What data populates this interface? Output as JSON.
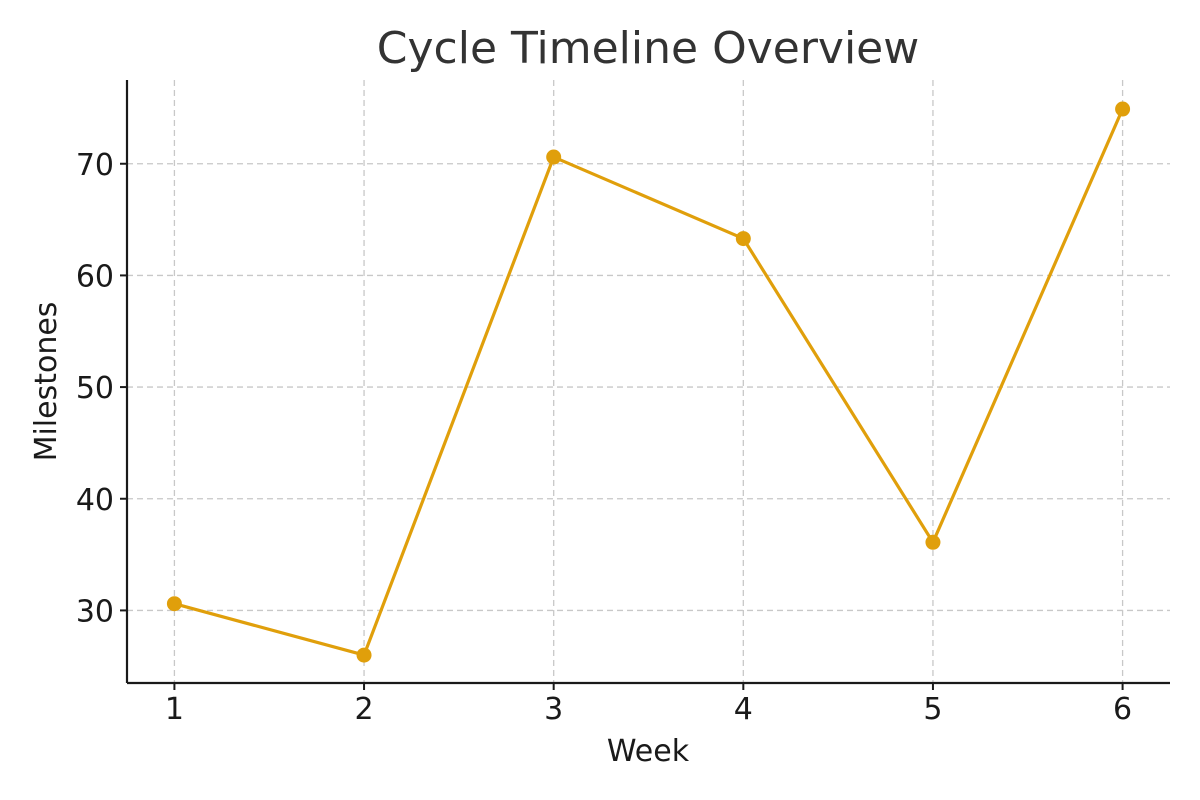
{
  "chart_data": {
    "type": "line",
    "title": "Cycle Timeline Overview",
    "xlabel": "Week",
    "ylabel": "Milestones",
    "x": [
      1,
      2,
      3,
      4,
      5,
      6
    ],
    "series": [
      {
        "values": [
          30.6,
          26.0,
          70.6,
          63.3,
          36.1,
          74.9
        ],
        "color": "#E09F0B",
        "marker": "circle"
      }
    ],
    "xlim": [
      0.75,
      6.25
    ],
    "ylim": [
      23.5,
      77.5
    ],
    "xticks": [
      1,
      2,
      3,
      4,
      5,
      6
    ],
    "yticks": [
      30,
      40,
      50,
      60,
      70
    ],
    "grid": true,
    "grid_style": "dashed",
    "legend": "none"
  }
}
